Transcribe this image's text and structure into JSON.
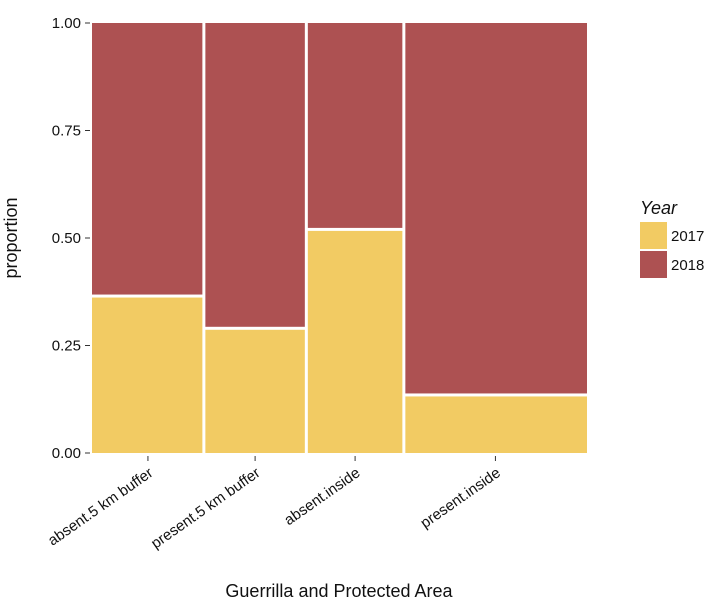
{
  "chart_data": {
    "type": "mosaic",
    "xlabel": "Guerrilla and Protected Area",
    "ylabel": "proportion",
    "ylim": [
      0,
      1
    ],
    "y_ticks": [
      "0.00",
      "0.25",
      "0.50",
      "0.75",
      "1.00"
    ],
    "grid": false,
    "legend_title": "Year",
    "legend_position": "right",
    "categories": [
      "absent.5 km buffer",
      "present.5 km buffer",
      "absent.inside",
      "present.inside"
    ],
    "category_widths": [
      0.226,
      0.207,
      0.197,
      0.37
    ],
    "series": [
      {
        "name": "2017",
        "color": "#F2CB63",
        "values": [
          0.365,
          0.29,
          0.52,
          0.135
        ]
      },
      {
        "name": "2018",
        "color": "#AD5152",
        "values": [
          0.635,
          0.71,
          0.48,
          0.865
        ]
      }
    ]
  }
}
